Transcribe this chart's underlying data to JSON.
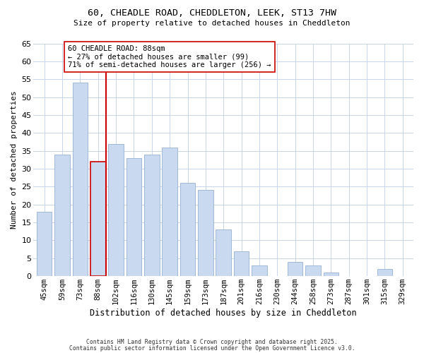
{
  "title_line1": "60, CHEADLE ROAD, CHEDDLETON, LEEK, ST13 7HW",
  "title_line2": "Size of property relative to detached houses in Cheddleton",
  "xlabel": "Distribution of detached houses by size in Cheddleton",
  "ylabel": "Number of detached properties",
  "categories": [
    "45sqm",
    "59sqm",
    "73sqm",
    "88sqm",
    "102sqm",
    "116sqm",
    "130sqm",
    "145sqm",
    "159sqm",
    "173sqm",
    "187sqm",
    "201sqm",
    "216sqm",
    "230sqm",
    "244sqm",
    "258sqm",
    "273sqm",
    "287sqm",
    "301sqm",
    "315sqm",
    "329sqm"
  ],
  "values": [
    18,
    34,
    54,
    32,
    37,
    33,
    34,
    36,
    26,
    24,
    13,
    7,
    3,
    0,
    4,
    3,
    1,
    0,
    0,
    2,
    0
  ],
  "bar_color": "#c9d9f0",
  "bar_edge_color": "#a0b8d8",
  "marker_index": 3,
  "marker_label_line1": "60 CHEADLE ROAD: 88sqm",
  "marker_label_line2": "← 27% of detached houses are smaller (99)",
  "marker_label_line3": "71% of semi-detached houses are larger (256) →",
  "marker_line_color": "#cc0000",
  "annotation_box_edge_color": "#cc0000",
  "ylim": [
    0,
    65
  ],
  "yticks": [
    0,
    5,
    10,
    15,
    20,
    25,
    30,
    35,
    40,
    45,
    50,
    55,
    60,
    65
  ],
  "footer_line1": "Contains HM Land Registry data © Crown copyright and database right 2025.",
  "footer_line2": "Contains public sector information licensed under the Open Government Licence v3.0.",
  "background_color": "#ffffff",
  "grid_color": "#c8d4e8"
}
